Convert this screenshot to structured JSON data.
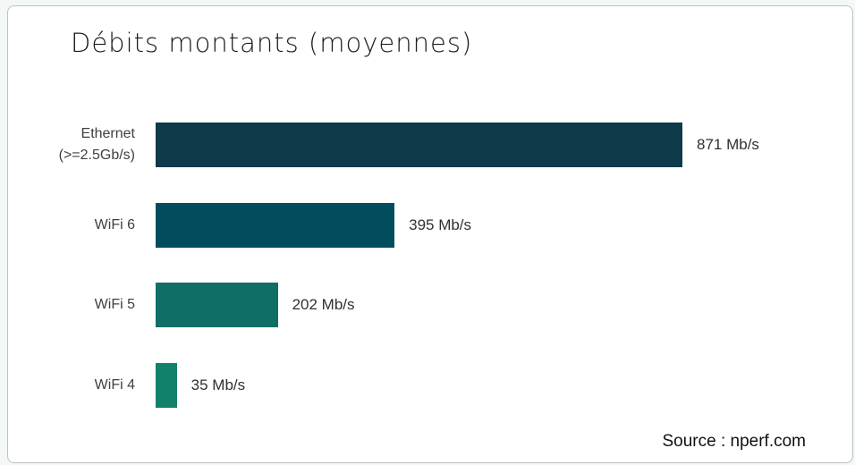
{
  "chart_data": {
    "type": "bar",
    "orientation": "horizontal",
    "title": "Débits montants (moyennes)",
    "categories": [
      "Ethernet (>=2.5Gb/s)",
      "WiFi 6",
      "WiFi 5",
      "WiFi 4"
    ],
    "values": [
      871,
      395,
      202,
      35
    ],
    "value_labels": [
      "871 Mb/s",
      "395 Mb/s",
      "202 Mb/s",
      "35 Mb/s"
    ],
    "colors": [
      "#0e3a4a",
      "#014d5e",
      "#0f6e66",
      "#12806a"
    ],
    "source": "Source : nperf.com"
  }
}
